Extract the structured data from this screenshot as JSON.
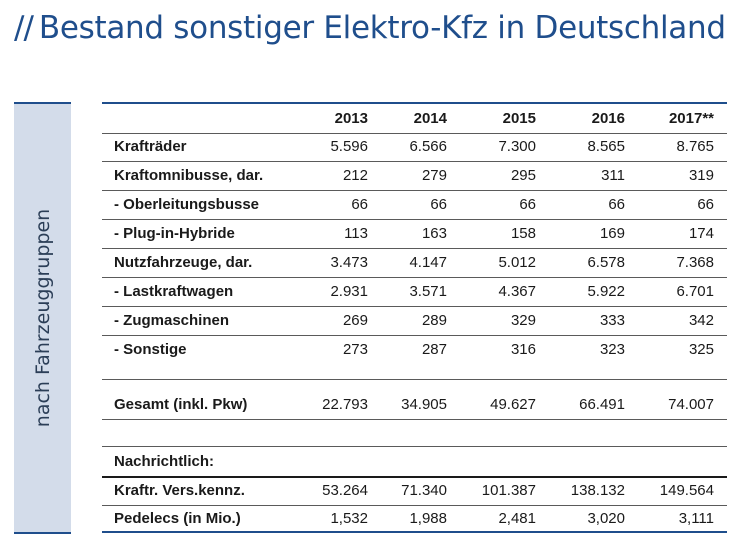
{
  "title": {
    "prefix": "//",
    "text": "Bestand sonstiger Elektro-Kfz in Deutschland"
  },
  "sidebar": {
    "label": "nach Fahrzeuggruppen"
  },
  "table": {
    "years": [
      "2013",
      "2014",
      "2015",
      "2016",
      "2017**"
    ],
    "rows": [
      {
        "label": "Krafträder",
        "values": [
          "5.596",
          "6.566",
          "7.300",
          "8.565",
          "8.765"
        ]
      },
      {
        "label": "Kraftomnibusse, dar.",
        "values": [
          "212",
          "279",
          "295",
          "311",
          "319"
        ]
      },
      {
        "label": "- Oberleitungsbusse",
        "values": [
          "66",
          "66",
          "66",
          "66",
          "66"
        ]
      },
      {
        "label": "- Plug-in-Hybride",
        "values": [
          "113",
          "163",
          "158",
          "169",
          "174"
        ]
      },
      {
        "label": "Nutzfahrzeuge, dar.",
        "values": [
          "3.473",
          "4.147",
          "5.012",
          "6.578",
          "7.368"
        ]
      },
      {
        "label": "- Lastkraftwagen",
        "values": [
          "2.931",
          "3.571",
          "4.367",
          "5.922",
          "6.701"
        ]
      },
      {
        "label": "- Zugmaschinen",
        "values": [
          "269",
          "289",
          "329",
          "333",
          "342"
        ]
      },
      {
        "label": "- Sonstige",
        "values": [
          "273",
          "287",
          "316",
          "323",
          "325"
        ]
      }
    ],
    "total": {
      "label": "Gesamt (inkl. Pkw)",
      "values": [
        "22.793",
        "34.905",
        "49.627",
        "66.491",
        "74.007"
      ]
    },
    "note_heading": "Nachrichtlich:",
    "note_rows": [
      {
        "label": "Kraftr. Vers.kennz.",
        "values": [
          "53.264",
          "71.340",
          "101.387",
          "138.132",
          "149.564"
        ]
      },
      {
        "label": "Pedelecs (in Mio.)",
        "values": [
          "1,532",
          "1,988",
          "2,481",
          "3,020",
          "3,111"
        ]
      }
    ]
  }
}
